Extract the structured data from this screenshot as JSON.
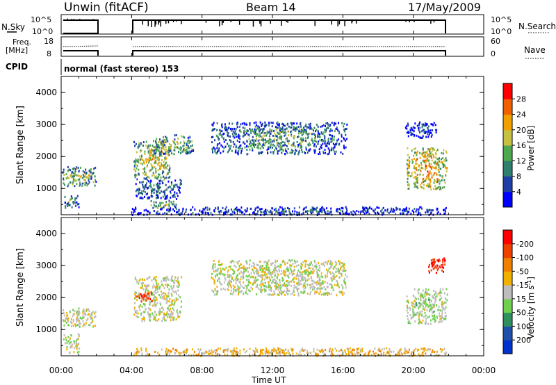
{
  "header": {
    "station": "Unwin (fitACF)",
    "beam": "Beam 14",
    "date": "17/May/2009"
  },
  "panel_labels": {
    "nsky_label": "N.Sky",
    "nsky_ticks": [
      "10^5",
      "10^0"
    ],
    "nsearch_label": "N.Search",
    "nsearch_ticks": [
      "10^5",
      "10^0"
    ],
    "freq_label": "Freq.",
    "freq_unit": "[MHz]",
    "freq_ticks": [
      "18",
      "8"
    ],
    "nave_label": "Nave",
    "nave_ticks": [
      "60",
      "0"
    ],
    "cpid_label": "CPID",
    "cpid_text": "normal (fast stereo) 153"
  },
  "colors": {
    "power": [
      "#0000ff",
      "#1f3fa8",
      "#2f7f6f",
      "#4fa84f",
      "#c8c040",
      "#f0a000",
      "#f06000",
      "#ff0000"
    ],
    "velocity": [
      "#0033cc",
      "#1f4fa8",
      "#2f8f5f",
      "#6fcf4f",
      "#bdbdbd",
      "#f0b000",
      "#f08000",
      "#f04000",
      "#ff0000"
    ]
  },
  "chart_data": [
    {
      "type": "heatmap",
      "name": "power",
      "ylabel": "Slant Range [km]",
      "xlabel": "Time UT",
      "x_ticks": [
        "00:00",
        "04:00",
        "08:00",
        "12:00",
        "16:00",
        "20:00",
        "00:00"
      ],
      "xlim_hours": [
        0,
        24
      ],
      "y_ticks": [
        "1000",
        "2000",
        "3000",
        "4000"
      ],
      "ylim_km": [
        180,
        4500
      ],
      "colorbar_label": "Power [dB]",
      "colorbar_ticks": [
        "4",
        "8",
        "12",
        "16",
        "20",
        "24",
        "28"
      ],
      "scatter_regions": [
        {
          "t0": 0.05,
          "t1": 1.95,
          "r0": 1100,
          "r1": 1700,
          "level": 0.55
        },
        {
          "t0": 0.1,
          "t1": 1.0,
          "r0": 400,
          "r1": 800,
          "level": 0.45
        },
        {
          "t0": 4.1,
          "t1": 6.2,
          "r0": 1300,
          "r1": 2500,
          "level": 0.65
        },
        {
          "t0": 5.2,
          "t1": 7.5,
          "r0": 2100,
          "r1": 2700,
          "level": 0.55
        },
        {
          "t0": 4.2,
          "t1": 6.8,
          "r0": 700,
          "r1": 1300,
          "level": 0.4
        },
        {
          "t0": 5.0,
          "t1": 6.5,
          "r0": 400,
          "r1": 650,
          "level": 0.6
        },
        {
          "t0": 8.5,
          "t1": 16.2,
          "r0": 2100,
          "r1": 3100,
          "level": 0.45
        },
        {
          "t0": 19.6,
          "t1": 21.9,
          "r0": 1000,
          "r1": 2300,
          "level": 0.75
        },
        {
          "t0": 19.5,
          "t1": 21.3,
          "r0": 2600,
          "r1": 3100,
          "level": 0.25
        },
        {
          "t0": 4.0,
          "t1": 21.9,
          "r0": 200,
          "r1": 450,
          "level": 0.3
        }
      ]
    },
    {
      "type": "heatmap",
      "name": "velocity",
      "ylabel": "Slant Range [km]",
      "xlabel": "Time UT",
      "x_ticks": [
        "00:00",
        "04:00",
        "08:00",
        "12:00",
        "16:00",
        "20:00",
        "00:00"
      ],
      "xlim_hours": [
        0,
        24
      ],
      "y_ticks": [
        "1000",
        "2000",
        "3000",
        "4000"
      ],
      "ylim_km": [
        180,
        4500
      ],
      "colorbar_label": "Velocity [m s",
      "colorbar_label_sup": "-1",
      "colorbar_label_end": "]",
      "colorbar_ticks": [
        "200",
        "100",
        "50",
        "15",
        "-15",
        "-50",
        "-100",
        "-200"
      ],
      "scatter_regions": [
        {
          "t0": 0.05,
          "t1": 1.95,
          "r0": 1100,
          "r1": 1700,
          "level": 0.5
        },
        {
          "t0": 0.1,
          "t1": 1.0,
          "r0": 300,
          "r1": 900,
          "level": 0.5
        },
        {
          "t0": 4.1,
          "t1": 6.8,
          "r0": 1300,
          "r1": 2700,
          "level": 0.5
        },
        {
          "t0": 4.2,
          "t1": 5.2,
          "r0": 1900,
          "r1": 2200,
          "level": 0.85
        },
        {
          "t0": 8.5,
          "t1": 16.2,
          "r0": 2100,
          "r1": 3200,
          "level": 0.5
        },
        {
          "t0": 19.6,
          "t1": 21.9,
          "r0": 1200,
          "r1": 2300,
          "level": 0.45
        },
        {
          "t0": 20.8,
          "t1": 21.8,
          "r0": 2800,
          "r1": 3300,
          "level": 0.9
        },
        {
          "t0": 4.0,
          "t1": 21.9,
          "r0": 200,
          "r1": 450,
          "level": 0.6
        }
      ]
    }
  ]
}
